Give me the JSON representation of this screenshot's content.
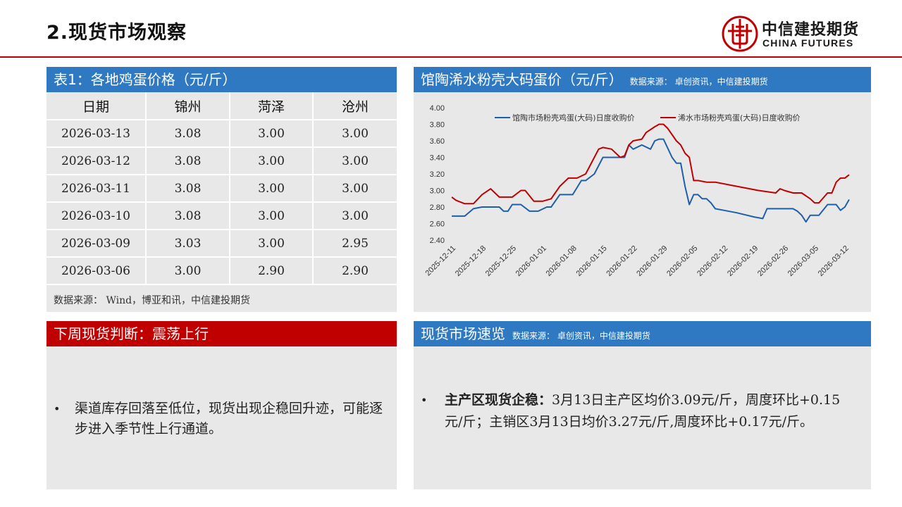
{
  "page": {
    "title": "2.现货市场观察"
  },
  "logo": {
    "cn": "中信建投期货",
    "en": "CHINA FUTURES",
    "mark_icon": "citic-mark-icon",
    "color": "#c00000"
  },
  "table_panel": {
    "header": "表1：各地鸡蛋价格（元/斤）",
    "columns": [
      "日期",
      "锦州",
      "菏泽",
      "沧州"
    ],
    "rows": [
      [
        "2026-03-13",
        "3.08",
        "3.00",
        "3.00"
      ],
      [
        "2026-03-12",
        "3.08",
        "3.00",
        "3.00"
      ],
      [
        "2026-03-11",
        "3.08",
        "3.00",
        "3.00"
      ],
      [
        "2026-03-10",
        "3.08",
        "3.00",
        "3.00"
      ],
      [
        "2026-03-09",
        "3.03",
        "3.00",
        "2.95"
      ],
      [
        "2026-03-06",
        "3.00",
        "2.90",
        "2.90"
      ]
    ],
    "source": "数据来源： Wind，博亚和讯，中信建投期货"
  },
  "chart_panel": {
    "header": "馆陶浠水粉壳大码蛋价（元/斤）",
    "source": "数据来源： 卓创资讯，中信建投期货"
  },
  "chart_data": {
    "type": "line",
    "title": "",
    "xlabel": "",
    "ylabel": "",
    "ylim": [
      2.4,
      4.0
    ],
    "y_ticks": [
      "4.00",
      "3.80",
      "3.60",
      "3.40",
      "3.20",
      "3.00",
      "2.80",
      "2.60",
      "2.40"
    ],
    "x_ticks": [
      "2025-12-11",
      "2025-12-18",
      "2025-12-25",
      "2026-01-01",
      "2026-01-08",
      "2026-01-15",
      "2026-01-22",
      "2026-01-29",
      "2026-02-05",
      "2026-02-12",
      "2026-02-19",
      "2026-02-26",
      "2026-03-05",
      "2026-03-12"
    ],
    "grid": false,
    "legend": "top",
    "series": [
      {
        "name": "馆陶市场粉壳鸡蛋(大码)日度收购价",
        "color": "#1f5fa8",
        "x": [
          "2025-12-11",
          "2025-12-14",
          "2025-12-16",
          "2025-12-18",
          "2025-12-20",
          "2025-12-22",
          "2025-12-23",
          "2025-12-24",
          "2025-12-25",
          "2025-12-27",
          "2025-12-29",
          "2025-12-31",
          "2026-01-02",
          "2026-01-03",
          "2026-01-05",
          "2026-01-07",
          "2026-01-08",
          "2026-01-10",
          "2026-01-11",
          "2026-01-13",
          "2026-01-15",
          "2026-01-18",
          "2026-01-20",
          "2026-01-21",
          "2026-01-22",
          "2026-01-24",
          "2026-01-26",
          "2026-01-27",
          "2026-01-28",
          "2026-01-29",
          "2026-01-31",
          "2026-02-01",
          "2026-02-02",
          "2026-02-03",
          "2026-02-04",
          "2026-02-05",
          "2026-02-06",
          "2026-02-07",
          "2026-02-08",
          "2026-02-09",
          "2026-02-10",
          "2026-02-12",
          "2026-02-15",
          "2026-02-19",
          "2026-02-21",
          "2026-02-22",
          "2026-02-26",
          "2026-02-28",
          "2026-03-01",
          "2026-03-02",
          "2026-03-03",
          "2026-03-04",
          "2026-03-06",
          "2026-03-08",
          "2026-03-10",
          "2026-03-11",
          "2026-03-12",
          "2026-03-13"
        ],
        "values": [
          2.69,
          2.69,
          2.78,
          2.8,
          2.8,
          2.8,
          2.75,
          2.75,
          2.83,
          2.83,
          2.75,
          2.75,
          2.8,
          2.8,
          2.95,
          2.95,
          2.95,
          3.12,
          3.12,
          3.2,
          3.4,
          3.4,
          3.4,
          3.55,
          3.5,
          3.55,
          3.5,
          3.6,
          3.62,
          3.62,
          3.4,
          3.33,
          3.33,
          3.05,
          2.83,
          2.95,
          2.95,
          2.9,
          2.9,
          2.85,
          2.78,
          2.76,
          2.73,
          2.68,
          2.66,
          2.78,
          2.78,
          2.78,
          2.75,
          2.7,
          2.62,
          2.7,
          2.7,
          2.83,
          2.83,
          2.76,
          2.8,
          2.89
        ]
      },
      {
        "name": "浠水市场粉壳鸡蛋(大码)日度收购价",
        "color": "#c00000",
        "x": [
          "2025-12-11",
          "2025-12-12",
          "2025-12-14",
          "2025-12-16",
          "2025-12-18",
          "2025-12-20",
          "2025-12-22",
          "2025-12-23",
          "2025-12-25",
          "2025-12-27",
          "2025-12-28",
          "2025-12-30",
          "2026-01-01",
          "2026-01-03",
          "2026-01-05",
          "2026-01-07",
          "2026-01-09",
          "2026-01-11",
          "2026-01-13",
          "2026-01-14",
          "2026-01-15",
          "2026-01-17",
          "2026-01-19",
          "2026-01-20",
          "2026-01-21",
          "2026-01-22",
          "2026-01-24",
          "2026-01-25",
          "2026-01-27",
          "2026-01-28",
          "2026-01-29",
          "2026-01-30",
          "2026-02-01",
          "2026-02-02",
          "2026-02-03",
          "2026-02-04",
          "2026-02-05",
          "2026-02-06",
          "2026-02-08",
          "2026-02-10",
          "2026-02-15",
          "2026-02-20",
          "2026-02-24",
          "2026-02-25",
          "2026-02-26",
          "2026-02-28",
          "2026-03-02",
          "2026-03-04",
          "2026-03-05",
          "2026-03-06",
          "2026-03-08",
          "2026-03-09",
          "2026-03-10",
          "2026-03-11",
          "2026-03-12",
          "2026-03-13"
        ],
        "values": [
          2.92,
          2.88,
          2.84,
          2.84,
          2.95,
          3.02,
          2.92,
          2.92,
          2.92,
          3.0,
          3.0,
          2.87,
          2.87,
          2.9,
          3.05,
          3.15,
          3.15,
          3.2,
          3.4,
          3.5,
          3.52,
          3.5,
          3.4,
          3.42,
          3.55,
          3.6,
          3.62,
          3.7,
          3.77,
          3.8,
          3.8,
          3.75,
          3.6,
          3.55,
          3.45,
          3.4,
          3.12,
          3.12,
          3.1,
          3.1,
          3.05,
          3.0,
          2.97,
          3.02,
          3.0,
          2.97,
          2.97,
          2.9,
          2.85,
          2.85,
          2.97,
          2.97,
          3.1,
          3.15,
          3.15,
          3.19
        ]
      }
    ]
  },
  "judge_panel": {
    "header": "下周现货判断：震荡上行",
    "bullet": "•",
    "text": "渠道库存回落至低位，现货出现企稳回升迹，可能逐步进入季节性上行通道。"
  },
  "overview_panel": {
    "header": "现货市场速览",
    "source": "数据来源： 卓创资讯，中信建投期货",
    "bullet": "•",
    "lead": "主产区现货企稳：",
    "text": "3月13日主产区均价3.09元/斤，周度环比+0.15元/斤；主销区3月13日均价3.27元/斤,周度环比+0.17元/斤。"
  }
}
